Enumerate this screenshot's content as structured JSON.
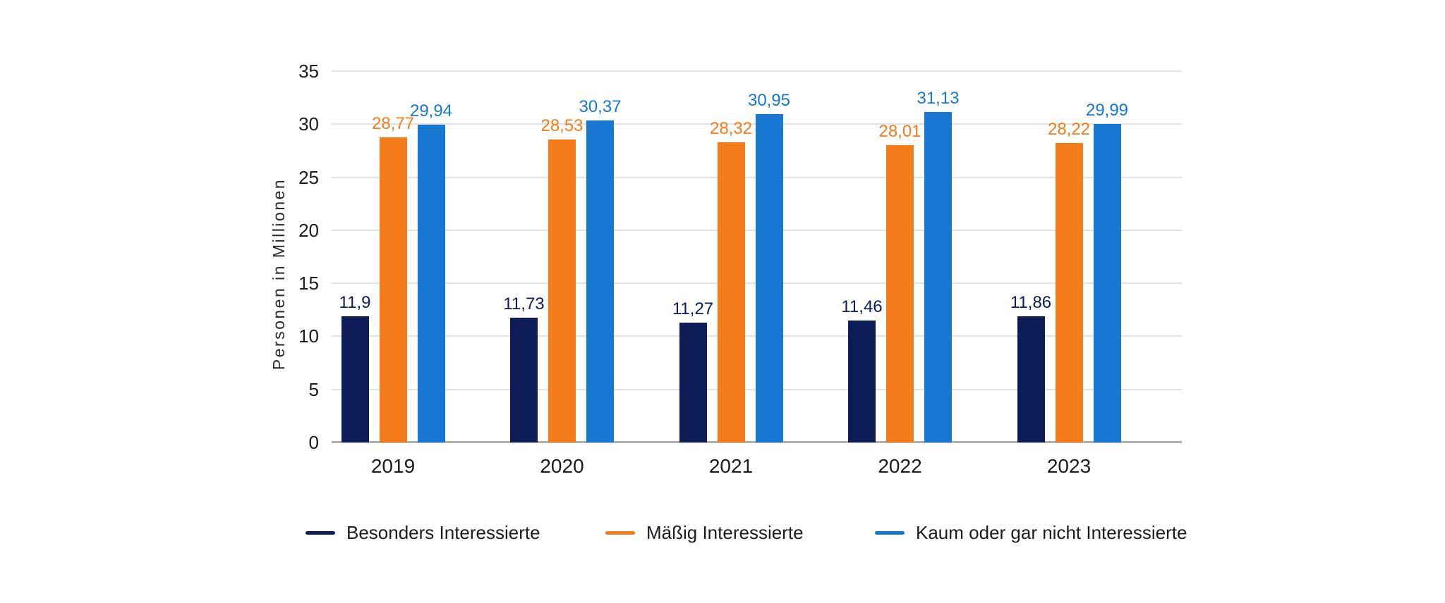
{
  "figure": {
    "background": "#ffffff"
  },
  "chart_data": {
    "type": "bar",
    "title": "",
    "ylabel": "Personen in Millionen",
    "xlabel": "",
    "categories": [
      "2019",
      "2020",
      "2021",
      "2022",
      "2023"
    ],
    "series": [
      {
        "name": "Besonders Interessierte",
        "color": "#0e1d58",
        "values": [
          11.9,
          11.73,
          11.27,
          11.46,
          11.86
        ],
        "value_labels": [
          "11,9",
          "11,73",
          "11,27",
          "11,46",
          "11,86"
        ]
      },
      {
        "name": "Mäßig Interessierte",
        "color": "#f57c1a",
        "values": [
          28.77,
          28.53,
          28.32,
          28.01,
          28.22
        ],
        "value_labels": [
          "28,77",
          "28,53",
          "28,32",
          "28,01",
          "28,22"
        ]
      },
      {
        "name": "Kaum oder gar nicht Interessierte",
        "color": "#1777d3",
        "values": [
          29.94,
          30.37,
          30.95,
          31.13,
          29.99
        ],
        "value_labels": [
          "29,94",
          "30,37",
          "30,95",
          "31,13",
          "29,99"
        ]
      }
    ],
    "ylim": [
      0,
      35
    ],
    "yticks": [
      0,
      5,
      10,
      15,
      20,
      25,
      30,
      35
    ],
    "grid": true,
    "gridline_color": "#e2e2e2",
    "axis_line_color": "#b0b0b0",
    "text_color": "#1c1c1c",
    "legend_position": "bottom",
    "decimal_separator": ","
  }
}
